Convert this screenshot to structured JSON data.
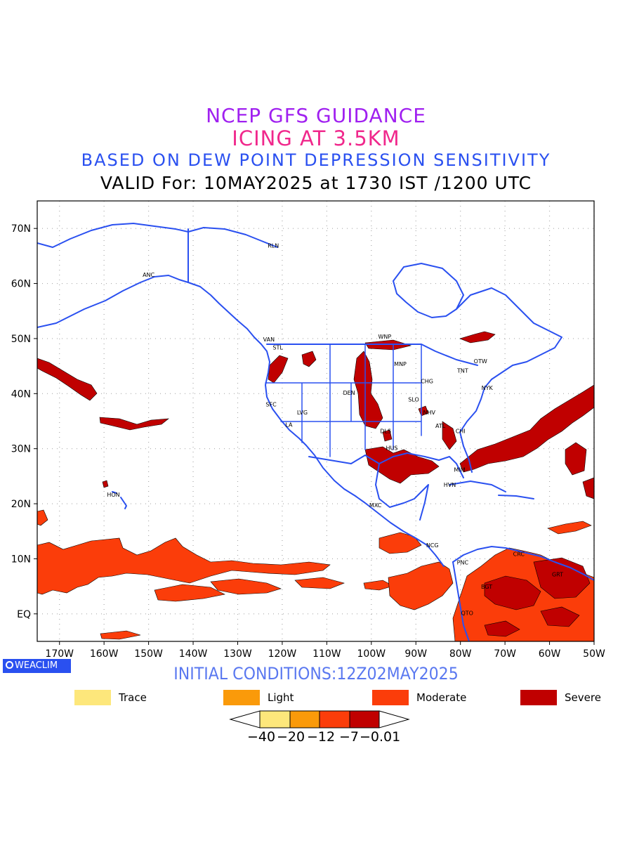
{
  "titles": {
    "line1": "NCEP GFS GUIDANCE",
    "line2": "ICING AT 3.5KM",
    "line3": "BASED ON DEW POINT DEPRESSION SENSITIVITY",
    "line4": "VALID For: 10MAY2025 at 1730 IST /1200 UTC"
  },
  "colors": {
    "title1": "#a020f0",
    "title2": "#f0288c",
    "title3": "#2a50f0",
    "coastline": "#2a50f0",
    "trace": "#fde77b",
    "light": "#fa9a0a",
    "moderate": "#fb3d0a",
    "severe": "#c00000"
  },
  "map": {
    "lat_labels": [
      "70N",
      "60N",
      "50N",
      "40N",
      "30N",
      "20N",
      "10N",
      "EQ"
    ],
    "lon_labels": [
      "170W",
      "160W",
      "150W",
      "140W",
      "130W",
      "120W",
      "110W",
      "100W",
      "90W",
      "80W",
      "70W",
      "60W",
      "50W"
    ],
    "extent": {
      "lon_min": -175,
      "lon_max": -50,
      "lat_min": -5,
      "lat_max": 75
    },
    "stations": [
      {
        "name": "RLN",
        "lon": -122,
        "lat": 66.5
      },
      {
        "name": "ANC",
        "lon": -150,
        "lat": 61.2
      },
      {
        "name": "VAN",
        "lon": -123,
        "lat": 49.5
      },
      {
        "name": "STL",
        "lon": -121,
        "lat": 48
      },
      {
        "name": "WNP",
        "lon": -97,
        "lat": 50
      },
      {
        "name": "MNP",
        "lon": -93.5,
        "lat": 45
      },
      {
        "name": "OTW",
        "lon": -75.5,
        "lat": 45.5
      },
      {
        "name": "TNT",
        "lon": -79.5,
        "lat": 43.8
      },
      {
        "name": "CHG",
        "lon": -87.5,
        "lat": 41.9
      },
      {
        "name": "NYK",
        "lon": -74,
        "lat": 40.7
      },
      {
        "name": "DEN",
        "lon": -105,
        "lat": 39.8
      },
      {
        "name": "SFC",
        "lon": -122.5,
        "lat": 37.7
      },
      {
        "name": "SLO",
        "lon": -90.5,
        "lat": 38.6
      },
      {
        "name": "LVG",
        "lon": -115.5,
        "lat": 36.2
      },
      {
        "name": "NHV",
        "lon": -87,
        "lat": 36.2
      },
      {
        "name": "LA",
        "lon": -118.5,
        "lat": 34
      },
      {
        "name": "ATL",
        "lon": -84.5,
        "lat": 33.8
      },
      {
        "name": "DLS",
        "lon": -96.8,
        "lat": 32.8
      },
      {
        "name": "CHI",
        "lon": -80,
        "lat": 32.8
      },
      {
        "name": "HUS",
        "lon": -95.4,
        "lat": 29.8
      },
      {
        "name": "MIM",
        "lon": -80.2,
        "lat": 25.8
      },
      {
        "name": "HVN",
        "lon": -82.4,
        "lat": 23.1
      },
      {
        "name": "HON",
        "lon": -157.9,
        "lat": 21.3
      },
      {
        "name": "MXC",
        "lon": -99.1,
        "lat": 19.4
      },
      {
        "name": "NCG",
        "lon": -86.3,
        "lat": 12.1
      },
      {
        "name": "CRC",
        "lon": -66.9,
        "lat": 10.5
      },
      {
        "name": "PNC",
        "lon": -79.5,
        "lat": 9
      },
      {
        "name": "GRT",
        "lon": -58.2,
        "lat": 6.8
      },
      {
        "name": "BGT",
        "lon": -74.1,
        "lat": 4.6
      },
      {
        "name": "QTO",
        "lon": -78.5,
        "lat": -0.2
      }
    ]
  },
  "footer": {
    "logo": "WEACLIM",
    "initial_conditions": "INITIAL CONDITIONS:12Z02MAY2025"
  },
  "legend": [
    {
      "label": "Trace",
      "color": "#fde77b"
    },
    {
      "label": "Light",
      "color": "#fa9a0a"
    },
    {
      "label": "Moderate",
      "color": "#fb3d0a"
    },
    {
      "label": "Severe",
      "color": "#c00000"
    }
  ],
  "colorbar": {
    "labels": [
      "−40",
      "−20",
      "−12",
      "−7",
      "−0.01"
    ]
  }
}
